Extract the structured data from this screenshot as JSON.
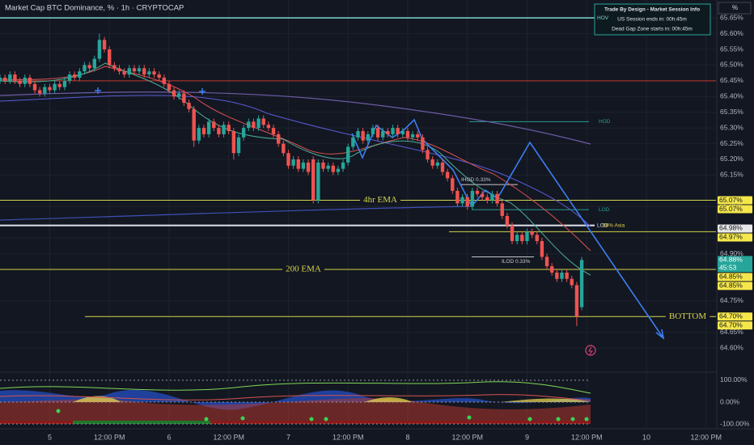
{
  "chart_data": {
    "type": "candlestick",
    "title": "Market Cap BTC Dominance, % · 1h · CRYPTOCAP",
    "unit_box": "%",
    "info_box": {
      "title": "Trade By Design - Market Session Info",
      "lines": [
        "US Session ends in: 00h:45m",
        "Dead Gap Zone starts in: 00h:45m"
      ]
    },
    "up_color": "#26a69a",
    "down_color": "#ef5350",
    "x": [
      0,
      1,
      2,
      3,
      4,
      5,
      6,
      7,
      8,
      9,
      10,
      11,
      12,
      13,
      14,
      15,
      16,
      17,
      18,
      19,
      20,
      21,
      22,
      23,
      24,
      25,
      26,
      27,
      28,
      29,
      30,
      31,
      32,
      33,
      34,
      35,
      36,
      37,
      38,
      39,
      40,
      41,
      42,
      43,
      44,
      45,
      46,
      47,
      48,
      49,
      50,
      51,
      52,
      53,
      54,
      55,
      56,
      57,
      58,
      59,
      60,
      61,
      62,
      63,
      64,
      65,
      66,
      67,
      68,
      69,
      70,
      71,
      72,
      73,
      74,
      75,
      76,
      77,
      78,
      79,
      80,
      81,
      82,
      83,
      84,
      85,
      86,
      87,
      88,
      89,
      90,
      91,
      92,
      93,
      94,
      95,
      96,
      97,
      98,
      99,
      100,
      101,
      102,
      103,
      104,
      105,
      106,
      107,
      108,
      109,
      110,
      111,
      112,
      113,
      114,
      115,
      116,
      117
    ],
    "open": [
      65.45,
      65.46,
      65.45,
      65.47,
      65.45,
      65.44,
      65.46,
      65.44,
      65.42,
      65.41,
      65.43,
      65.42,
      65.44,
      65.43,
      65.45,
      65.47,
      65.46,
      65.48,
      65.5,
      65.49,
      65.52,
      65.58,
      65.55,
      65.5,
      65.49,
      65.48,
      65.47,
      65.49,
      65.48,
      65.49,
      65.47,
      65.48,
      65.47,
      65.46,
      65.44,
      65.42,
      65.4,
      65.41,
      65.38,
      65.36,
      65.26,
      65.3,
      65.28,
      65.32,
      65.3,
      65.28,
      65.31,
      65.29,
      65.22,
      65.27,
      65.3,
      65.32,
      65.3,
      65.33,
      65.31,
      65.3,
      65.28,
      65.25,
      65.22,
      65.18,
      65.2,
      65.17,
      65.19,
      65.2,
      65.07,
      65.19,
      65.17,
      65.18,
      65.16,
      65.17,
      65.19,
      65.24,
      65.27,
      65.29,
      65.26,
      65.28,
      65.3,
      65.27,
      65.29,
      65.28,
      65.3,
      65.28,
      65.29,
      65.27,
      65.28,
      65.27,
      65.23,
      65.2,
      65.18,
      65.19,
      65.16,
      65.14,
      65.1,
      65.06,
      65.08,
      65.05,
      65.1,
      65.09,
      65.08,
      65.07,
      65.09,
      65.06,
      65.02,
      64.99,
      64.94,
      64.96,
      64.94,
      64.97,
      64.96,
      64.94,
      64.89,
      64.86,
      64.84,
      64.82,
      64.84,
      64.82,
      64.8,
      64.73
    ],
    "high": [
      65.47,
      65.47,
      65.48,
      65.48,
      65.46,
      65.47,
      65.47,
      65.45,
      65.43,
      65.44,
      65.44,
      65.45,
      65.45,
      65.46,
      65.48,
      65.48,
      65.49,
      65.51,
      65.51,
      65.53,
      65.6,
      65.59,
      65.56,
      65.51,
      65.5,
      65.49,
      65.5,
      65.5,
      65.5,
      65.5,
      65.49,
      65.49,
      65.48,
      65.47,
      65.45,
      65.43,
      65.42,
      65.42,
      65.39,
      65.37,
      65.31,
      65.31,
      65.33,
      65.33,
      65.31,
      65.32,
      65.32,
      65.3,
      65.28,
      65.31,
      65.33,
      65.33,
      65.34,
      65.34,
      65.32,
      65.31,
      65.29,
      65.26,
      65.23,
      65.21,
      65.21,
      65.2,
      65.2,
      65.21,
      65.2,
      65.2,
      65.19,
      65.19,
      65.18,
      65.2,
      65.25,
      65.28,
      65.3,
      65.3,
      65.29,
      65.31,
      65.31,
      65.3,
      65.3,
      65.31,
      65.31,
      65.3,
      65.3,
      65.29,
      65.29,
      65.28,
      65.24,
      65.21,
      65.2,
      65.2,
      65.17,
      65.15,
      65.11,
      65.09,
      65.09,
      65.11,
      65.11,
      65.1,
      65.09,
      65.1,
      65.1,
      65.07,
      65.03,
      65.0,
      64.97,
      64.97,
      64.98,
      64.98,
      64.97,
      64.95,
      64.9,
      64.87,
      64.85,
      64.85,
      64.85,
      64.83,
      64.81,
      64.89
    ],
    "low": [
      65.44,
      65.44,
      65.44,
      65.44,
      65.43,
      65.43,
      65.43,
      65.41,
      65.4,
      65.4,
      65.41,
      65.41,
      65.42,
      65.42,
      65.44,
      65.45,
      65.45,
      65.47,
      65.48,
      65.48,
      65.51,
      65.54,
      65.49,
      65.48,
      65.47,
      65.46,
      65.46,
      65.47,
      65.47,
      65.46,
      65.46,
      65.46,
      65.45,
      65.43,
      65.41,
      65.39,
      65.39,
      65.37,
      65.35,
      65.24,
      65.25,
      65.27,
      65.27,
      65.29,
      65.27,
      65.27,
      65.28,
      65.2,
      65.21,
      65.26,
      65.29,
      65.29,
      65.29,
      65.3,
      65.29,
      65.27,
      65.24,
      65.21,
      65.17,
      65.17,
      65.16,
      65.16,
      65.15,
      65.06,
      65.06,
      65.16,
      65.16,
      65.15,
      65.15,
      65.16,
      65.18,
      65.23,
      65.26,
      65.25,
      65.25,
      65.27,
      65.26,
      65.26,
      65.27,
      65.27,
      65.27,
      65.27,
      65.26,
      65.26,
      65.26,
      65.22,
      65.19,
      65.17,
      65.17,
      65.15,
      65.13,
      65.09,
      65.05,
      65.05,
      65.04,
      65.04,
      65.08,
      65.07,
      65.06,
      65.06,
      65.05,
      65.01,
      64.98,
      64.93,
      64.93,
      64.93,
      64.93,
      64.95,
      64.93,
      64.88,
      64.85,
      64.83,
      64.81,
      64.81,
      64.81,
      64.79,
      64.67,
      64.72
    ],
    "close": [
      65.46,
      65.45,
      65.47,
      65.45,
      65.44,
      65.46,
      65.44,
      65.42,
      65.41,
      65.43,
      65.42,
      65.44,
      65.43,
      65.45,
      65.47,
      65.46,
      65.48,
      65.5,
      65.49,
      65.52,
      65.58,
      65.55,
      65.5,
      65.49,
      65.48,
      65.47,
      65.49,
      65.48,
      65.49,
      65.47,
      65.48,
      65.47,
      65.46,
      65.44,
      65.42,
      65.4,
      65.41,
      65.38,
      65.36,
      65.26,
      65.3,
      65.28,
      65.32,
      65.3,
      65.28,
      65.31,
      65.29,
      65.22,
      65.27,
      65.3,
      65.32,
      65.3,
      65.33,
      65.31,
      65.3,
      65.28,
      65.25,
      65.22,
      65.18,
      65.2,
      65.17,
      65.19,
      65.16,
      65.07,
      65.19,
      65.17,
      65.18,
      65.16,
      65.17,
      65.19,
      65.24,
      65.27,
      65.29,
      65.26,
      65.28,
      65.3,
      65.27,
      65.29,
      65.28,
      65.3,
      65.28,
      65.29,
      65.27,
      65.28,
      65.27,
      65.23,
      65.2,
      65.18,
      65.19,
      65.16,
      65.14,
      65.1,
      65.06,
      65.08,
      65.05,
      65.1,
      65.09,
      65.08,
      65.07,
      65.09,
      65.06,
      65.02,
      64.99,
      64.94,
      64.96,
      64.94,
      64.97,
      64.96,
      64.94,
      64.89,
      64.86,
      64.84,
      64.82,
      64.84,
      64.82,
      64.8,
      64.7,
      64.88
    ],
    "xlim": [
      0,
      144
    ],
    "xticks": [
      {
        "value": 10,
        "label": "5"
      },
      {
        "value": 22,
        "label": "12:00 PM"
      },
      {
        "value": 34,
        "label": "6"
      },
      {
        "value": 46,
        "label": "12:00 PM"
      },
      {
        "value": 58,
        "label": "7"
      },
      {
        "value": 70,
        "label": "12:00 PM"
      },
      {
        "value": 82,
        "label": "8"
      },
      {
        "value": 94,
        "label": "12:00 PM"
      },
      {
        "value": 106,
        "label": "9"
      },
      {
        "value": 118,
        "label": "12:00 PM"
      },
      {
        "value": 130,
        "label": "10"
      },
      {
        "value": 142,
        "label": "12:00 PM"
      }
    ],
    "ylim": [
      64.536,
      65.707
    ],
    "yticks": [
      {
        "value": 65.65,
        "label": "65.65%"
      },
      {
        "value": 65.6,
        "label": "65.60%"
      },
      {
        "value": 65.55,
        "label": "65.55%"
      },
      {
        "value": 65.5,
        "label": "65.50%"
      },
      {
        "value": 65.45,
        "label": "65.45%"
      },
      {
        "value": 65.4,
        "label": "65.40%"
      },
      {
        "value": 65.35,
        "label": "65.35%"
      },
      {
        "value": 65.3,
        "label": "65.30%"
      },
      {
        "value": 65.25,
        "label": "65.25%"
      },
      {
        "value": 65.2,
        "label": "65.20%"
      },
      {
        "value": 65.15,
        "label": "65.15%"
      },
      {
        "value": 65.05,
        "label": "65.05%"
      },
      {
        "value": 64.95,
        "label": "64.95%"
      },
      {
        "value": 64.9,
        "label": "64.90%"
      },
      {
        "value": 64.75,
        "label": "64.75%"
      },
      {
        "value": 64.65,
        "label": "64.65%"
      },
      {
        "value": 64.6,
        "label": "64.60%"
      }
    ],
    "levels": [
      {
        "value": 65.65,
        "label": "HOV",
        "color": "#7fd6d0"
      },
      {
        "value": 65.32,
        "label": "HOD",
        "color": "#2a9d8f"
      },
      {
        "value": 65.07,
        "label": "4hr EMA",
        "color": "#d4d44a"
      },
      {
        "value": 65.04,
        "label": "LOD",
        "color": "#2a9d8f"
      },
      {
        "value": 64.99,
        "label": "LOD",
        "color": "#e0e3eb"
      },
      {
        "value": 64.99,
        "label": "50% Asia",
        "color": "#e8d34a"
      },
      {
        "value": 64.97,
        "color": "#d4d44a"
      },
      {
        "value": 65.45,
        "color": "#c0392b"
      },
      {
        "value": 64.85,
        "label": "200 EMA",
        "color": "#d4d44a"
      },
      {
        "value": 64.7,
        "label": "BOTTOM",
        "color": "#d4d44a"
      },
      {
        "value": 65.12,
        "label": "IHOD 0.33%",
        "color": "#c8c8c8"
      },
      {
        "value": 64.89,
        "label": "ILOD 0.33%",
        "color": "#c8c8c8"
      }
    ],
    "price_labels": [
      {
        "value": 65.07,
        "label": "65.07%",
        "color": "#f5e74a"
      },
      {
        "value": 65.07,
        "label": "65.07%",
        "color": "#f5e74a"
      },
      {
        "value": 64.98,
        "label": "64.98%",
        "color": "#e8e8e8"
      },
      {
        "value": 64.97,
        "label": "64.97%",
        "color": "#f5e74a"
      },
      {
        "value": 64.88,
        "label": "64.88%",
        "color": "#26a69a",
        "countdown": "45:53"
      },
      {
        "value": 64.85,
        "label": "64.85%",
        "color": "#f5e74a"
      },
      {
        "value": 64.85,
        "label": "64.85%",
        "color": "#f5e74a"
      },
      {
        "value": 64.7,
        "label": "64.70%",
        "color": "#f5e74a"
      },
      {
        "value": 64.7,
        "label": "64.70%",
        "color": "#f5e74a"
      }
    ],
    "indicator": {
      "ylim": [
        -111,
        118.5
      ],
      "yticks": [
        {
          "value": 100,
          "label": "100.00%"
        },
        {
          "value": 0,
          "label": "0.00%"
        },
        {
          "value": -100,
          "label": "-100.00%"
        }
      ]
    }
  }
}
